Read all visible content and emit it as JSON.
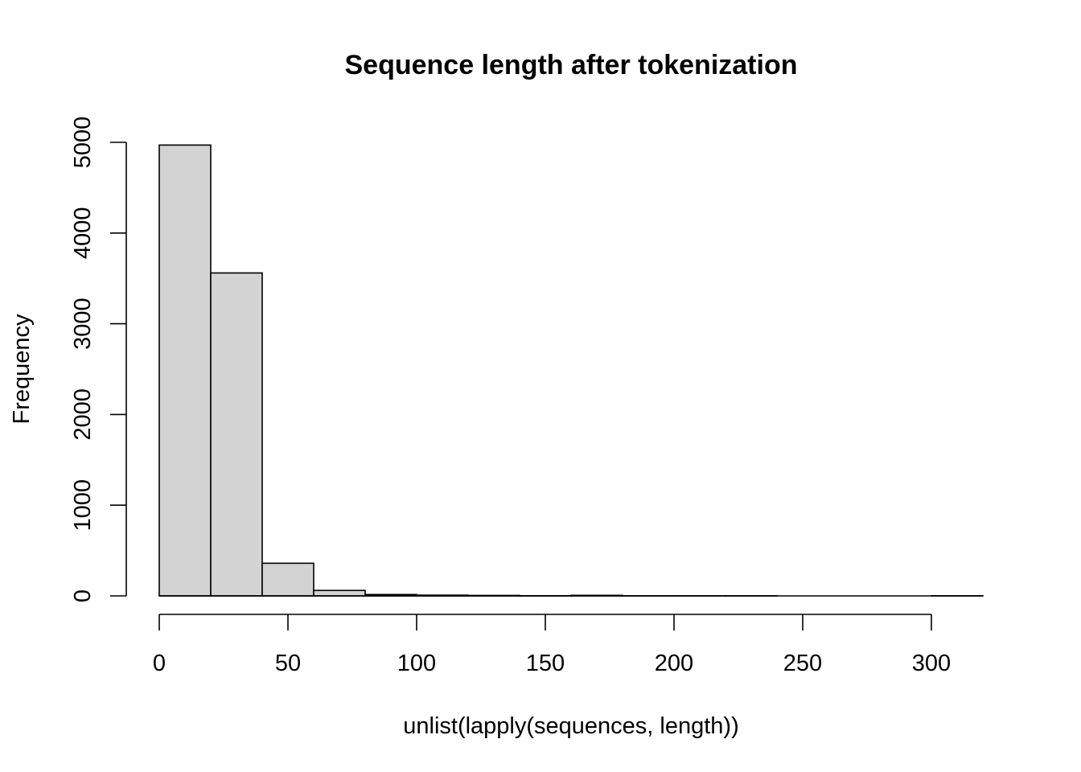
{
  "chart_data": {
    "type": "bar",
    "title": "Sequence length after tokenization",
    "xlabel": "unlist(lapply(sequences, length))",
    "ylabel": "Frequency",
    "bin_edges": [
      0,
      20,
      40,
      60,
      80,
      100,
      120,
      140,
      160,
      180,
      200,
      220,
      240,
      260,
      280,
      300,
      320
    ],
    "values": [
      4970,
      3560,
      360,
      60,
      15,
      8,
      5,
      2,
      6,
      1,
      1,
      1,
      0,
      0,
      0,
      1
    ],
    "x_ticks": [
      0,
      50,
      100,
      150,
      200,
      250,
      300
    ],
    "y_ticks": [
      0,
      1000,
      2000,
      3000,
      4000,
      5000
    ],
    "xlim": [
      0,
      320
    ],
    "ylim": [
      0,
      5000
    ],
    "grid": false,
    "legend": "none",
    "colors": {
      "bar_fill": "#d3d3d3",
      "bar_stroke": "#000000"
    }
  }
}
